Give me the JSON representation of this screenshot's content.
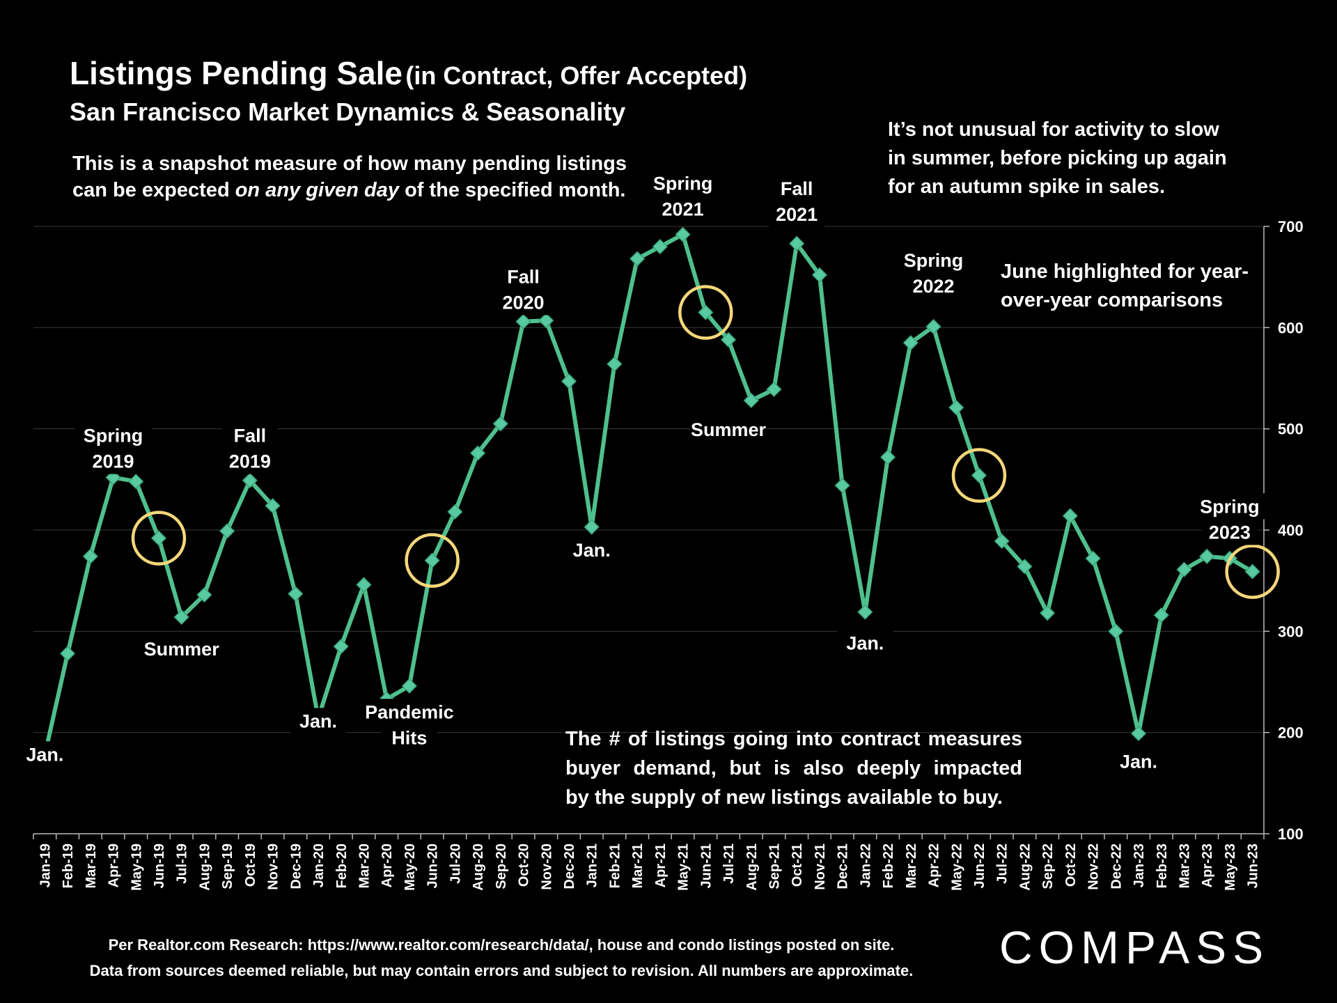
{
  "title": "Listings Pending Sale",
  "title_paren": "(in Contract, Offer Accepted)",
  "subtitle": "San Francisco Market Dynamics & Seasonality",
  "note_top_left": {
    "line1": "This is a snapshot measure of how many pending listings",
    "line2_pre": "can be expected ",
    "line2_italic": "on any given day",
    "line2_post": " of the specified month."
  },
  "note_top_right": [
    "It’s not unusual for activity to slow",
    "in summer, before picking up again",
    "for an autumn spike in sales."
  ],
  "note_june": [
    "June highlighted for year-",
    "over-year comparisons"
  ],
  "note_bottom": [
    "The # of listings going into contract measures",
    "buyer demand, but is also deeply impacted",
    "by the supply of new listings available to buy."
  ],
  "footer": [
    "Per Realtor.com Research:  https://www.realtor.com/research/data/, house and condo listings posted on site.",
    "Data from sources deemed reliable, but may contain errors and subject to revision. All numbers are approximate."
  ],
  "logo_text": "COMPASS",
  "colors": {
    "line": "#4fc08d",
    "marker": "#58c9a0",
    "highlight": "#f5d77a",
    "grid": "#3a3a3a",
    "background": "#000000",
    "text": "#ffffff"
  },
  "chart_data": {
    "type": "line",
    "title": "Listings Pending Sale (in Contract, Offer Accepted)",
    "ylim": [
      100,
      700
    ],
    "y_ticks": [
      100,
      200,
      300,
      400,
      500,
      600,
      700
    ],
    "y_axis_side": "right",
    "grid": true,
    "categories": [
      "Jan-19",
      "Feb-19",
      "Mar-19",
      "Apr-19",
      "May-19",
      "Jun-19",
      "Jul-19",
      "Aug-19",
      "Sep-19",
      "Oct-19",
      "Nov-19",
      "Dec-19",
      "Jan-20",
      "Feb-20",
      "Mar-20",
      "Apr-20",
      "May-20",
      "Jun-20",
      "Jul-20",
      "Aug-20",
      "Sep-20",
      "Oct-20",
      "Nov-20",
      "Dec-20",
      "Jan-21",
      "Feb-21",
      "Mar-21",
      "Apr-21",
      "May-21",
      "Jun-21",
      "Jul-21",
      "Aug-21",
      "Sep-21",
      "Oct-21",
      "Nov-21",
      "Dec-21",
      "Jan-22",
      "Feb-22",
      "Mar-22",
      "Apr-22",
      "May-22",
      "Jun-22",
      "Jul-22",
      "Aug-22",
      "Sep-22",
      "Oct-22",
      "Nov-22",
      "Dec-22",
      "Jan-23",
      "Feb-23",
      "Mar-23",
      "Apr-23",
      "May-23",
      "Jun-23"
    ],
    "values": [
      178,
      278,
      374,
      452,
      448,
      392,
      314,
      336,
      399,
      449,
      424,
      337,
      214,
      285,
      346,
      233,
      246,
      370,
      418,
      476,
      505,
      606,
      607,
      547,
      403,
      564,
      668,
      680,
      692,
      615,
      588,
      528,
      539,
      683,
      652,
      444,
      319,
      472,
      585,
      601,
      521,
      454,
      389,
      364,
      318,
      414,
      372,
      300,
      199,
      316,
      361,
      374,
      372,
      359
    ],
    "highlighted_months": [
      "Jun-19",
      "Jun-20",
      "Jun-21",
      "Jun-22",
      "Jun-23"
    ],
    "annotations": [
      {
        "text": [
          "Jan."
        ],
        "anchor": "Jan-19",
        "y": 172
      },
      {
        "text": [
          "Spring",
          "2019"
        ],
        "anchor": "Apr-19",
        "y": 487
      },
      {
        "text": [
          "Summer"
        ],
        "anchor": "Jul-19",
        "y": 276
      },
      {
        "text": [
          "Fall",
          "2019"
        ],
        "anchor": "Oct-19",
        "y": 487
      },
      {
        "text": [
          "Jan."
        ],
        "anchor": "Jan-20",
        "y": 205
      },
      {
        "text": [
          "Pandemic",
          "Hits"
        ],
        "anchor": "May-20",
        "y": 214
      },
      {
        "text": [
          "Fall",
          "2020"
        ],
        "anchor": "Oct-20",
        "y": 644
      },
      {
        "text": [
          "Jan."
        ],
        "anchor": "Jan-21",
        "y": 374
      },
      {
        "text": [
          "Spring",
          "2021"
        ],
        "anchor": "May-21",
        "y": 736
      },
      {
        "text": [
          "Summer"
        ],
        "anchor": "Jul-21",
        "y": 493
      },
      {
        "text": [
          "Fall",
          "2021"
        ],
        "anchor": "Oct-21",
        "y": 731
      },
      {
        "text": [
          "Jan."
        ],
        "anchor": "Jan-22",
        "y": 282
      },
      {
        "text": [
          "Spring",
          "2022"
        ],
        "anchor": "Apr-22",
        "y": 660
      },
      {
        "text": [
          "Jan."
        ],
        "anchor": "Jan-23",
        "y": 165
      },
      {
        "text": [
          "Spring",
          "2023"
        ],
        "anchor": "May-23",
        "y": 417
      }
    ]
  }
}
